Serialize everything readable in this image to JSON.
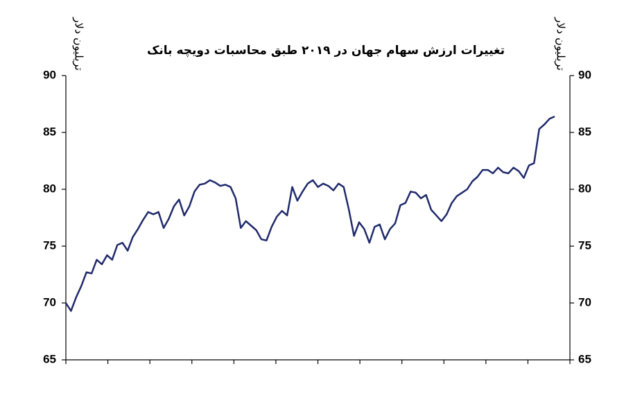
{
  "chart_data": {
    "type": "line",
    "title": "تغییرات ارزش سهام جهان در ۲۰۱۹ طبق محاسبات دویچه بانک",
    "ylabel": "تریلیون دلار",
    "y2label": "تریلیون دلار",
    "categories": [
      null,
      null,
      null,
      null,
      null,
      null,
      null,
      null,
      null,
      null,
      null,
      null,
      null,
      null,
      null,
      null,
      null,
      null,
      null,
      null,
      null,
      null,
      null,
      null,
      null,
      null,
      null,
      null,
      null,
      null,
      null,
      null,
      null,
      null,
      null,
      null,
      null,
      null,
      null,
      null,
      null,
      null,
      null,
      null,
      null,
      null,
      null,
      null,
      null,
      null,
      null,
      null,
      null,
      null,
      null,
      null,
      null,
      null,
      null,
      null,
      null,
      null,
      null,
      null,
      null,
      null,
      null,
      null,
      null,
      null,
      null,
      null,
      null,
      null,
      null,
      null,
      null,
      null,
      null,
      null,
      null,
      null,
      null,
      null,
      null,
      null,
      null,
      null,
      null,
      null,
      null,
      null,
      null,
      null,
      null,
      null
    ],
    "series": [
      {
        "color": "#1f2a6b",
        "values": [
          70,
          69.3,
          70.5,
          71.5,
          72.7,
          72.6,
          73.8,
          73.4,
          74.2,
          73.8,
          75.1,
          75.3,
          74.6,
          75.8,
          76.5,
          77.3,
          78,
          77.8,
          78,
          76.6,
          77.4,
          78.5,
          79.1,
          77.7,
          78.5,
          79.8,
          80.4,
          80.5,
          80.8,
          80.6,
          80.3,
          80.4,
          80.2,
          79.2,
          76.6,
          77.2,
          76.8,
          76.4,
          75.6,
          75.5,
          76.7,
          77.6,
          78.1,
          77.7,
          80.2,
          79,
          79.8,
          80.5,
          80.8,
          80.2,
          80.5,
          80.3,
          79.9,
          80.5,
          80.2,
          78.2,
          75.9,
          77.1,
          76.5,
          75.3,
          76.7,
          76.9,
          75.6,
          76.5,
          77,
          78.6,
          78.8,
          79.8,
          79.7,
          79.2,
          79.5,
          78.2,
          77.7,
          77.2,
          77.8,
          78.8,
          79.4,
          79.7,
          80,
          80.7,
          81.1,
          81.7,
          81.7,
          81.4,
          81.9,
          81.5,
          81.4,
          81.9,
          81.6,
          81,
          82.1,
          82.3,
          85.3,
          85.7,
          86.2,
          86.4
        ]
      }
    ],
    "ylim": [
      65,
      90
    ],
    "yticks": [
      65,
      70,
      75,
      80,
      85,
      90
    ],
    "y2lim": [
      65,
      90
    ],
    "y2ticks": [
      65,
      70,
      75,
      80,
      85,
      90
    ],
    "grid": false
  }
}
